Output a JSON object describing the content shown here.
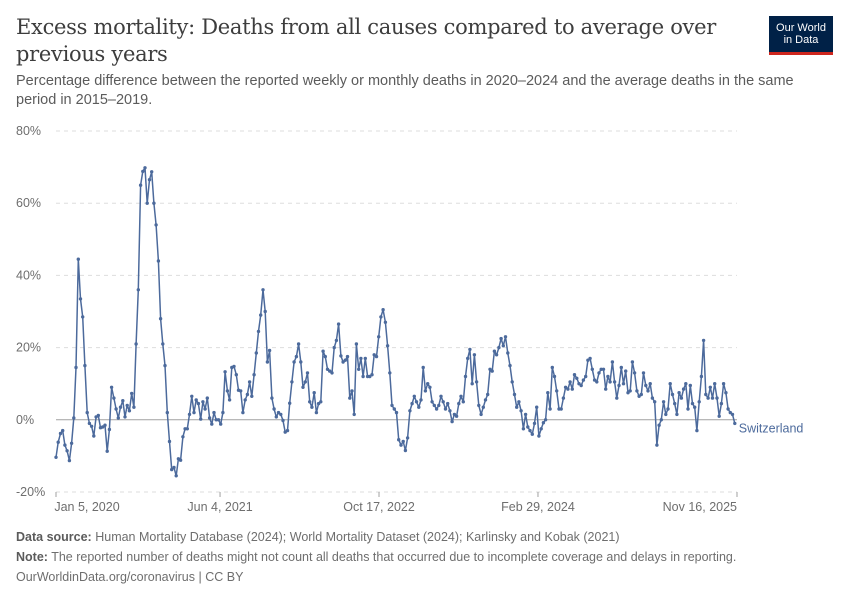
{
  "header": {
    "title": "Excess mortality: Deaths from all causes compared to average over previous years",
    "subtitle": "Percentage difference between the reported weekly or monthly deaths in 2020–2024 and the average deaths in the same period in 2015–2019.",
    "logo_line1": "Our World",
    "logo_line2": "in Data"
  },
  "footer": {
    "source_label": "Data source:",
    "source_text": "Human Mortality Database (2024); World Mortality Dataset (2024); Karlinsky and Kobak (2021)",
    "note_label": "Note:",
    "note_text": "The reported number of deaths might not count all deaths that occurred due to incomplete coverage and delays in reporting.",
    "credit": "OurWorldinData.org/coronavirus | CC BY"
  },
  "colors": {
    "series": "#4c6a9c",
    "grid": "#dddddd",
    "zero": "#a1a1a1",
    "text": "#5b5b5b"
  },
  "chart_data": {
    "type": "line",
    "title": "Excess mortality: Deaths from all causes compared to average over previous years",
    "ylabel": "",
    "xlabel": "",
    "ylim": [
      -20,
      80
    ],
    "yticks": [
      -20,
      0,
      20,
      40,
      60,
      80
    ],
    "ytick_labels": [
      "-20%",
      "0%",
      "20%",
      "40%",
      "60%",
      "80%"
    ],
    "xticks": [
      "2020-01-05",
      "2021-06-04",
      "2022-10-17",
      "2024-02-29",
      "2025-11-16"
    ],
    "xtick_labels": [
      "Jan 5, 2020",
      "Jun 4, 2021",
      "Oct 17, 2022",
      "Feb 29, 2024",
      "Nov 16, 2025"
    ],
    "grid": true,
    "legend": "right-end label",
    "series": [
      {
        "name": "Switzerland",
        "start_date": "2020-01-05",
        "interval_days": 7,
        "values": [
          -10.4,
          -6.2,
          -3.8,
          -3.0,
          -7.0,
          -8.6,
          -11.3,
          -6.5,
          0.5,
          14.5,
          44.5,
          33.5,
          28.5,
          15.0,
          2.0,
          -1.0,
          -1.8,
          -4.5,
          0.8,
          1.2,
          -2.2,
          -2.0,
          -1.5,
          -8.7,
          -2.7,
          9.0,
          6.0,
          3.0,
          0.5,
          3.5,
          5.3,
          0.8,
          4.0,
          2.5,
          7.3,
          3.5,
          21.0,
          36.0,
          65.0,
          68.8,
          69.8,
          60.0,
          66.5,
          68.7,
          60.0,
          54.0,
          44.0,
          28.0,
          21.0,
          15.0,
          2.0,
          -6.0,
          -13.8,
          -13.2,
          -15.5,
          -10.8,
          -11.2,
          -4.7,
          -2.5,
          -2.5,
          1.5,
          6.5,
          2.0,
          5.5,
          4.5,
          0.2,
          5.0,
          3.0,
          6.0,
          0.5,
          -1.2,
          2.0,
          0.0,
          0.0,
          -1.2,
          2.0,
          13.3,
          8.0,
          5.5,
          14.5,
          14.8,
          12.5,
          8.2,
          8.0,
          2.0,
          5.5,
          7.0,
          10.5,
          6.5,
          12.5,
          18.5,
          24.5,
          29.0,
          36.0,
          30.0,
          16.0,
          19.2,
          6.0,
          3.0,
          0.8,
          2.0,
          1.5,
          -0.2,
          -3.4,
          -3.0,
          4.6,
          10.5,
          16.0,
          17.5,
          21.0,
          16.0,
          9.0,
          10.5,
          13.0,
          5.0,
          3.5,
          7.5,
          2.0,
          4.5,
          5.0,
          19.0,
          17.5,
          14.0,
          13.5,
          13.0,
          20.0,
          22.0,
          26.5,
          17.7,
          16.0,
          16.5,
          17.5,
          6.0,
          8.0,
          1.5,
          21.0,
          14.0,
          17.0,
          12.0,
          17.0,
          12.0,
          12.0,
          12.5,
          18.0,
          17.5,
          23.0,
          28.5,
          30.5,
          27.0,
          20.5,
          13.0,
          4.0,
          3.0,
          2.0,
          -5.5,
          -7.0,
          -6.0,
          -8.5,
          -5.0,
          2.5,
          4.5,
          6.5,
          5.0,
          3.5,
          5.5,
          14.5,
          8.0,
          10.0,
          9.0,
          5.0,
          4.0,
          3.0,
          4.0,
          6.5,
          5.0,
          3.0,
          4.5,
          2.5,
          -0.5,
          1.5,
          1.0,
          4.5,
          6.5,
          5.0,
          12.0,
          17.0,
          19.5,
          10.0,
          18.0,
          10.5,
          4.0,
          1.5,
          3.5,
          5.5,
          7.0,
          14.0,
          13.5,
          19.0,
          18.0,
          20.0,
          22.5,
          20.5,
          23.0,
          18.5,
          15.0,
          10.5,
          7.0,
          3.5,
          5.0,
          2.5,
          -2.5,
          1.5,
          -2.0,
          -3.0,
          -4.0,
          -1.0,
          3.5,
          -4.5,
          -2.5,
          -0.8,
          0.0,
          7.5,
          3.0,
          14.5,
          12.0,
          8.0,
          3.0,
          3.0,
          6.0,
          9.0,
          8.5,
          10.5,
          8.5,
          12.5,
          11.5,
          10.0,
          9.5,
          11.0,
          12.0,
          16.5,
          17.0,
          14.0,
          11.0,
          10.5,
          13.0,
          14.0,
          14.0,
          8.5,
          12.0,
          10.5,
          16.0,
          10.5,
          6.0,
          9.5,
          14.5,
          10.0,
          13.5,
          7.5,
          8.0,
          16.0,
          13.0,
          8.0,
          6.5,
          7.0,
          13.0,
          9.5,
          8.0,
          10.0,
          6.0,
          5.0,
          -7.0,
          -1.5,
          0.0,
          5.0,
          1.5,
          3.0,
          10.0,
          7.0,
          4.5,
          1.5,
          7.5,
          6.0,
          8.5,
          10.0,
          3.0,
          9.5,
          4.5,
          3.5,
          -3.0,
          5.0,
          12.0,
          22.0,
          7.0,
          6.0,
          9.0,
          6.0,
          10.0,
          6.0,
          1.0,
          4.5,
          10.0,
          7.5,
          3.0,
          2.0,
          1.5,
          -1.0
        ]
      }
    ]
  }
}
